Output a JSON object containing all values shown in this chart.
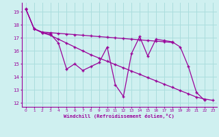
{
  "xlabel": "Windchill (Refroidissement éolien,°C)",
  "bg_color": "#cff0f0",
  "grid_color": "#aadddd",
  "line_color": "#990099",
  "marker": "+",
  "xlim": [
    -0.5,
    23.5
  ],
  "ylim": [
    11.7,
    19.7
  ],
  "yticks": [
    12,
    13,
    14,
    15,
    16,
    17,
    18,
    19
  ],
  "xticks": [
    0,
    1,
    2,
    3,
    4,
    5,
    6,
    7,
    8,
    9,
    10,
    11,
    12,
    13,
    14,
    15,
    16,
    17,
    18,
    19,
    20,
    21,
    22,
    23
  ],
  "series": [
    {
      "x": [
        0,
        1,
        2,
        3,
        4,
        5,
        6,
        7,
        8,
        9,
        10,
        11,
        12,
        13,
        14,
        15,
        16,
        17,
        18,
        19,
        20,
        21,
        22
      ],
      "y": [
        19.2,
        17.7,
        17.4,
        17.3,
        16.6,
        14.6,
        15.0,
        14.5,
        14.8,
        15.1,
        16.3,
        13.4,
        12.5,
        15.8,
        17.1,
        15.6,
        16.9,
        16.8,
        16.7,
        16.3,
        14.8,
        12.8,
        12.2
      ]
    },
    {
      "x": [
        0,
        1,
        2,
        3,
        4,
        5,
        6,
        7,
        8,
        9,
        10,
        11,
        12,
        13,
        14,
        15,
        16,
        17,
        18
      ],
      "y": [
        19.2,
        17.7,
        17.45,
        17.4,
        17.35,
        17.3,
        17.25,
        17.2,
        17.15,
        17.1,
        17.05,
        17.0,
        16.95,
        16.9,
        16.85,
        16.8,
        16.75,
        16.7,
        16.65
      ]
    },
    {
      "x": [
        0,
        1,
        2,
        3,
        4,
        5,
        6,
        7,
        8,
        9,
        10,
        11,
        12,
        13,
        14,
        15,
        16,
        17,
        18,
        19,
        20,
        21,
        22,
        23
      ],
      "y": [
        19.2,
        17.7,
        17.4,
        17.2,
        16.9,
        16.6,
        16.3,
        16.0,
        15.7,
        15.45,
        15.2,
        14.95,
        14.7,
        14.45,
        14.2,
        13.95,
        13.7,
        13.45,
        13.2,
        12.95,
        12.7,
        12.45,
        12.3,
        12.2
      ]
    }
  ]
}
